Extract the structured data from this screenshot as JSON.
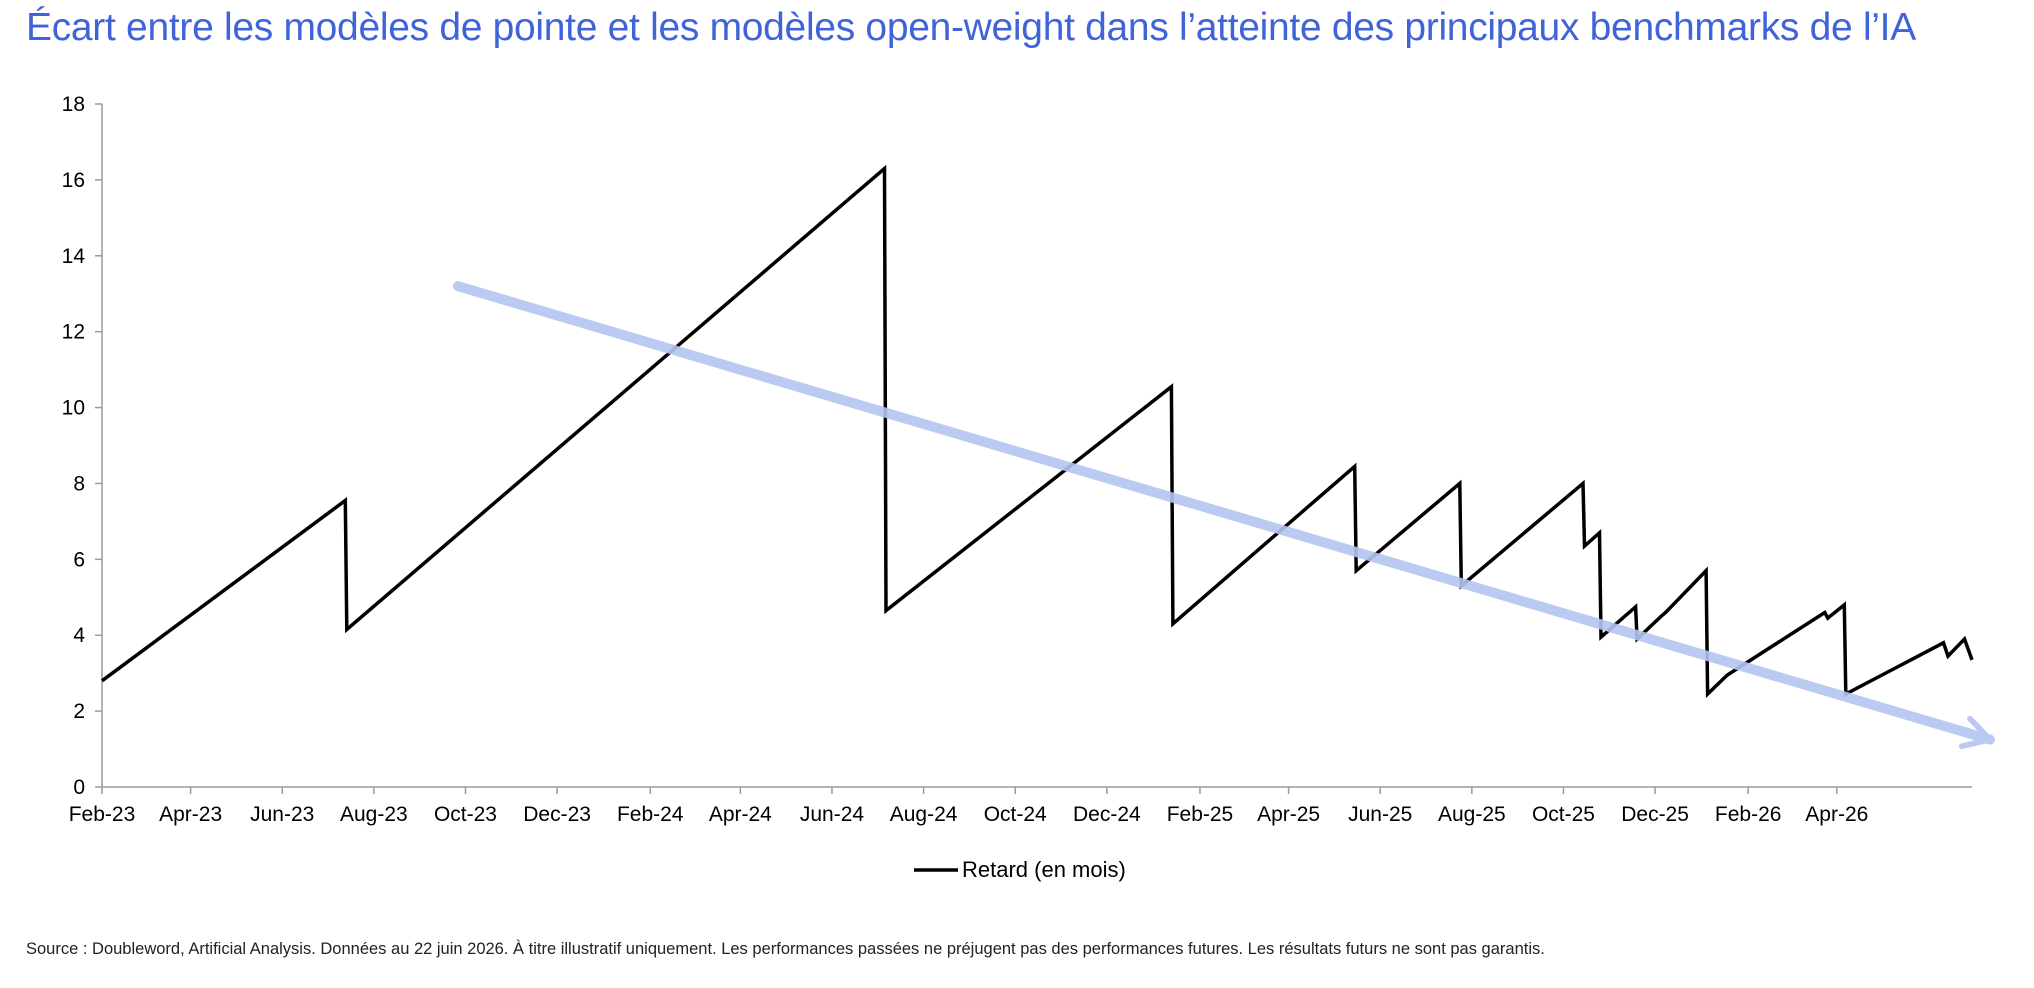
{
  "title": "Écart entre les modèles de pointe et les modèles open-weight dans l’atteinte des principaux benchmarks de l’IA",
  "source": "Source : Doubleword, Artificial Analysis. Données au 22 juin 2026. À titre illustratif uniquement. Les performances passées ne préjugent pas des performances futures. Les résultats futurs ne sont pas garantis.",
  "chart_data": {
    "type": "line",
    "xlabel": "",
    "ylabel": "",
    "ylim": [
      0,
      18
    ],
    "yticks": [
      0,
      2,
      4,
      6,
      8,
      10,
      12,
      14,
      16,
      18
    ],
    "xlim": [
      "2023-02-01",
      "2026-06-30"
    ],
    "xticks": [
      {
        "date": "2023-02-01",
        "label": "Feb-23"
      },
      {
        "date": "2023-04-01",
        "label": "Apr-23"
      },
      {
        "date": "2023-06-01",
        "label": "Jun-23"
      },
      {
        "date": "2023-08-01",
        "label": "Aug-23"
      },
      {
        "date": "2023-10-01",
        "label": "Oct-23"
      },
      {
        "date": "2023-12-01",
        "label": "Dec-23"
      },
      {
        "date": "2024-02-01",
        "label": "Feb-24"
      },
      {
        "date": "2024-04-01",
        "label": "Apr-24"
      },
      {
        "date": "2024-06-01",
        "label": "Jun-24"
      },
      {
        "date": "2024-08-01",
        "label": "Aug-24"
      },
      {
        "date": "2024-10-01",
        "label": "Oct-24"
      },
      {
        "date": "2024-12-01",
        "label": "Dec-24"
      },
      {
        "date": "2025-02-01",
        "label": "Feb-25"
      },
      {
        "date": "2025-04-01",
        "label": "Apr-25"
      },
      {
        "date": "2025-06-01",
        "label": "Jun-25"
      },
      {
        "date": "2025-08-01",
        "label": "Aug-25"
      },
      {
        "date": "2025-10-01",
        "label": "Oct-25"
      },
      {
        "date": "2025-12-01",
        "label": "Dec-25"
      },
      {
        "date": "2026-02-01",
        "label": "Feb-26"
      },
      {
        "date": "2026-04-01",
        "label": "Apr-26"
      }
    ],
    "grid": false,
    "legend_position": "bottom",
    "series": [
      {
        "name": "Retard (en mois)",
        "color": "#000000",
        "points": [
          {
            "x": "2023-02-01",
            "y": 2.8
          },
          {
            "x": "2023-07-13",
            "y": 7.55
          },
          {
            "x": "2023-07-14",
            "y": 4.15
          },
          {
            "x": "2024-07-06",
            "y": 16.3
          },
          {
            "x": "2024-07-07",
            "y": 4.65
          },
          {
            "x": "2025-01-13",
            "y": 10.55
          },
          {
            "x": "2025-01-14",
            "y": 4.3
          },
          {
            "x": "2025-05-15",
            "y": 8.45
          },
          {
            "x": "2025-05-16",
            "y": 5.7
          },
          {
            "x": "2025-07-24",
            "y": 8.0
          },
          {
            "x": "2025-07-25",
            "y": 5.3
          },
          {
            "x": "2025-10-14",
            "y": 8.0
          },
          {
            "x": "2025-10-15",
            "y": 6.35
          },
          {
            "x": "2025-10-25",
            "y": 6.7
          },
          {
            "x": "2025-10-26",
            "y": 3.95
          },
          {
            "x": "2025-11-18",
            "y": 4.75
          },
          {
            "x": "2025-11-19",
            "y": 3.9
          },
          {
            "x": "2025-12-05",
            "y": 4.5
          },
          {
            "x": "2025-12-08",
            "y": 4.6
          },
          {
            "x": "2026-01-04",
            "y": 5.7
          },
          {
            "x": "2026-01-05",
            "y": 2.45
          },
          {
            "x": "2026-01-18",
            "y": 2.95
          },
          {
            "x": "2026-03-24",
            "y": 4.6
          },
          {
            "x": "2026-03-26",
            "y": 4.45
          },
          {
            "x": "2026-04-06",
            "y": 4.8
          },
          {
            "x": "2026-04-07",
            "y": 2.45
          },
          {
            "x": "2026-06-11",
            "y": 3.8
          },
          {
            "x": "2026-06-14",
            "y": 3.45
          },
          {
            "x": "2026-06-25",
            "y": 3.9
          },
          {
            "x": "2026-06-30",
            "y": 3.35
          }
        ]
      }
    ],
    "annotations": [
      {
        "type": "trend-arrow",
        "color": "#b3c5ef",
        "from": {
          "x": "2023-09-26",
          "y": 13.2
        },
        "to": {
          "x": "2026-07-12",
          "y": 1.25
        }
      }
    ]
  }
}
